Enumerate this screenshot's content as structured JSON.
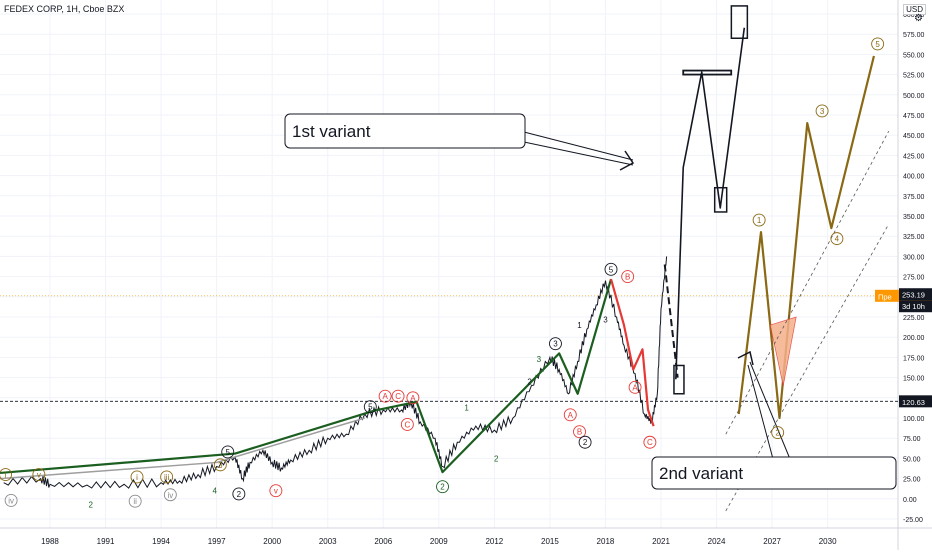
{
  "header": {
    "symbol": "FEDEX CORP, 1H, Cboe BZX",
    "currency": "USD"
  },
  "price_axis": {
    "ticks": [
      "600.00",
      "575.00",
      "550.00",
      "525.00",
      "500.00",
      "475.00",
      "450.00",
      "425.00",
      "400.00",
      "375.00",
      "350.00",
      "325.00",
      "300.00",
      "275.00",
      "250.00",
      "225.00",
      "200.00",
      "175.00",
      "150.00",
      "125.00",
      "100.00",
      "75.00",
      "50.00",
      "25.00",
      "0.00",
      "-25.00"
    ],
    "pre_label": "Пре",
    "pre_price": "251.24",
    "last_price": "253.19",
    "countdown": "3d 10h",
    "level_price": "120.63"
  },
  "time_axis": {
    "ticks": [
      "1988",
      "1991",
      "1994",
      "1997",
      "2000",
      "2003",
      "2006",
      "2009",
      "2012",
      "2015",
      "2018",
      "2021",
      "2024",
      "2027",
      "2030"
    ]
  },
  "annotations": {
    "variant1": "1st variant",
    "variant2": "2nd variant"
  },
  "wave_labels": {
    "i": "i",
    "ii": "ii",
    "iii": "iii",
    "iv": "iv",
    "v": "v",
    "n1": "1",
    "n2": "2",
    "n3": "3",
    "n4": "4",
    "n5": "5",
    "A": "A",
    "B": "B",
    "C": "C"
  },
  "colors": {
    "price": "#131722",
    "green_wave": "#1b5e20",
    "red_wave": "#e53935",
    "olive_wave": "#8b6914",
    "orange_fill": "#f5b08a",
    "grid": "#f0f3fa",
    "pre_badge": "#ff9800",
    "level_line": "#131722"
  },
  "chart_data": {
    "type": "line",
    "title": "FEDEX CORP, 1H, Cboe BZX",
    "xlabel": "",
    "ylabel": "USD",
    "ylim": [
      -25,
      600
    ],
    "xlim": [
      1985.3,
      2033.8
    ],
    "log_scale": false,
    "grid": true,
    "horizontal_level": 120.63,
    "series": [
      {
        "x": [
          1985.5,
          1987.5,
          1988,
          1990,
          1992,
          1994,
          1995,
          1996,
          1997,
          1998,
          1998.4,
          1998.8,
          1999.5,
          2000,
          2000.5,
          2001,
          2002,
          2003,
          2004,
          2005,
          2006,
          2007,
          2007.5,
          2008,
          2008.8,
          2009.2,
          2010,
          2011,
          2012,
          2013,
          2014,
          2015,
          2015.5,
          2016,
          2016.5,
          2017,
          2017.5,
          2018,
          2018.6,
          2019,
          2019.6,
          2020.1,
          2020.5,
          2020.8,
          2021,
          2021.3
        ],
        "values": [
          20,
          25,
          18,
          17,
          18,
          20,
          22,
          30,
          40,
          52,
          25,
          45,
          60,
          45,
          38,
          48,
          60,
          75,
          80,
          105,
          110,
          110,
          120,
          95,
          75,
          40,
          70,
          90,
          85,
          100,
          140,
          175,
          160,
          130,
          170,
          210,
          240,
          270,
          225,
          190,
          155,
          105,
          95,
          130,
          235,
          300
        ]
      }
    ],
    "wave_counts": {
      "green_primary": {
        "x": [
          1985.3,
          1998,
          2005.5,
          2007.8,
          2009.2,
          2015.5,
          2016.5,
          2018.3
        ],
        "values": [
          32,
          56,
          109,
          120,
          33,
          180,
          130,
          272
        ]
      },
      "red_abc": {
        "x": [
          2018.3,
          2019,
          2019.5,
          2020,
          2020.3,
          2020.6
        ],
        "values": [
          272,
          215,
          160,
          185,
          110,
          90
        ]
      },
      "variant1": {
        "x": [
          2021.8,
          2022.2,
          2023.2,
          2024.2,
          2025.5
        ],
        "values": [
          148,
          410,
          528,
          360,
          583
        ]
      },
      "variant2": {
        "x": [
          2025.2,
          2026.4,
          2027.4,
          2028.9,
          2030.2,
          2032.5
        ],
        "values": [
          105,
          330,
          100,
          465,
          335,
          548
        ]
      }
    }
  }
}
